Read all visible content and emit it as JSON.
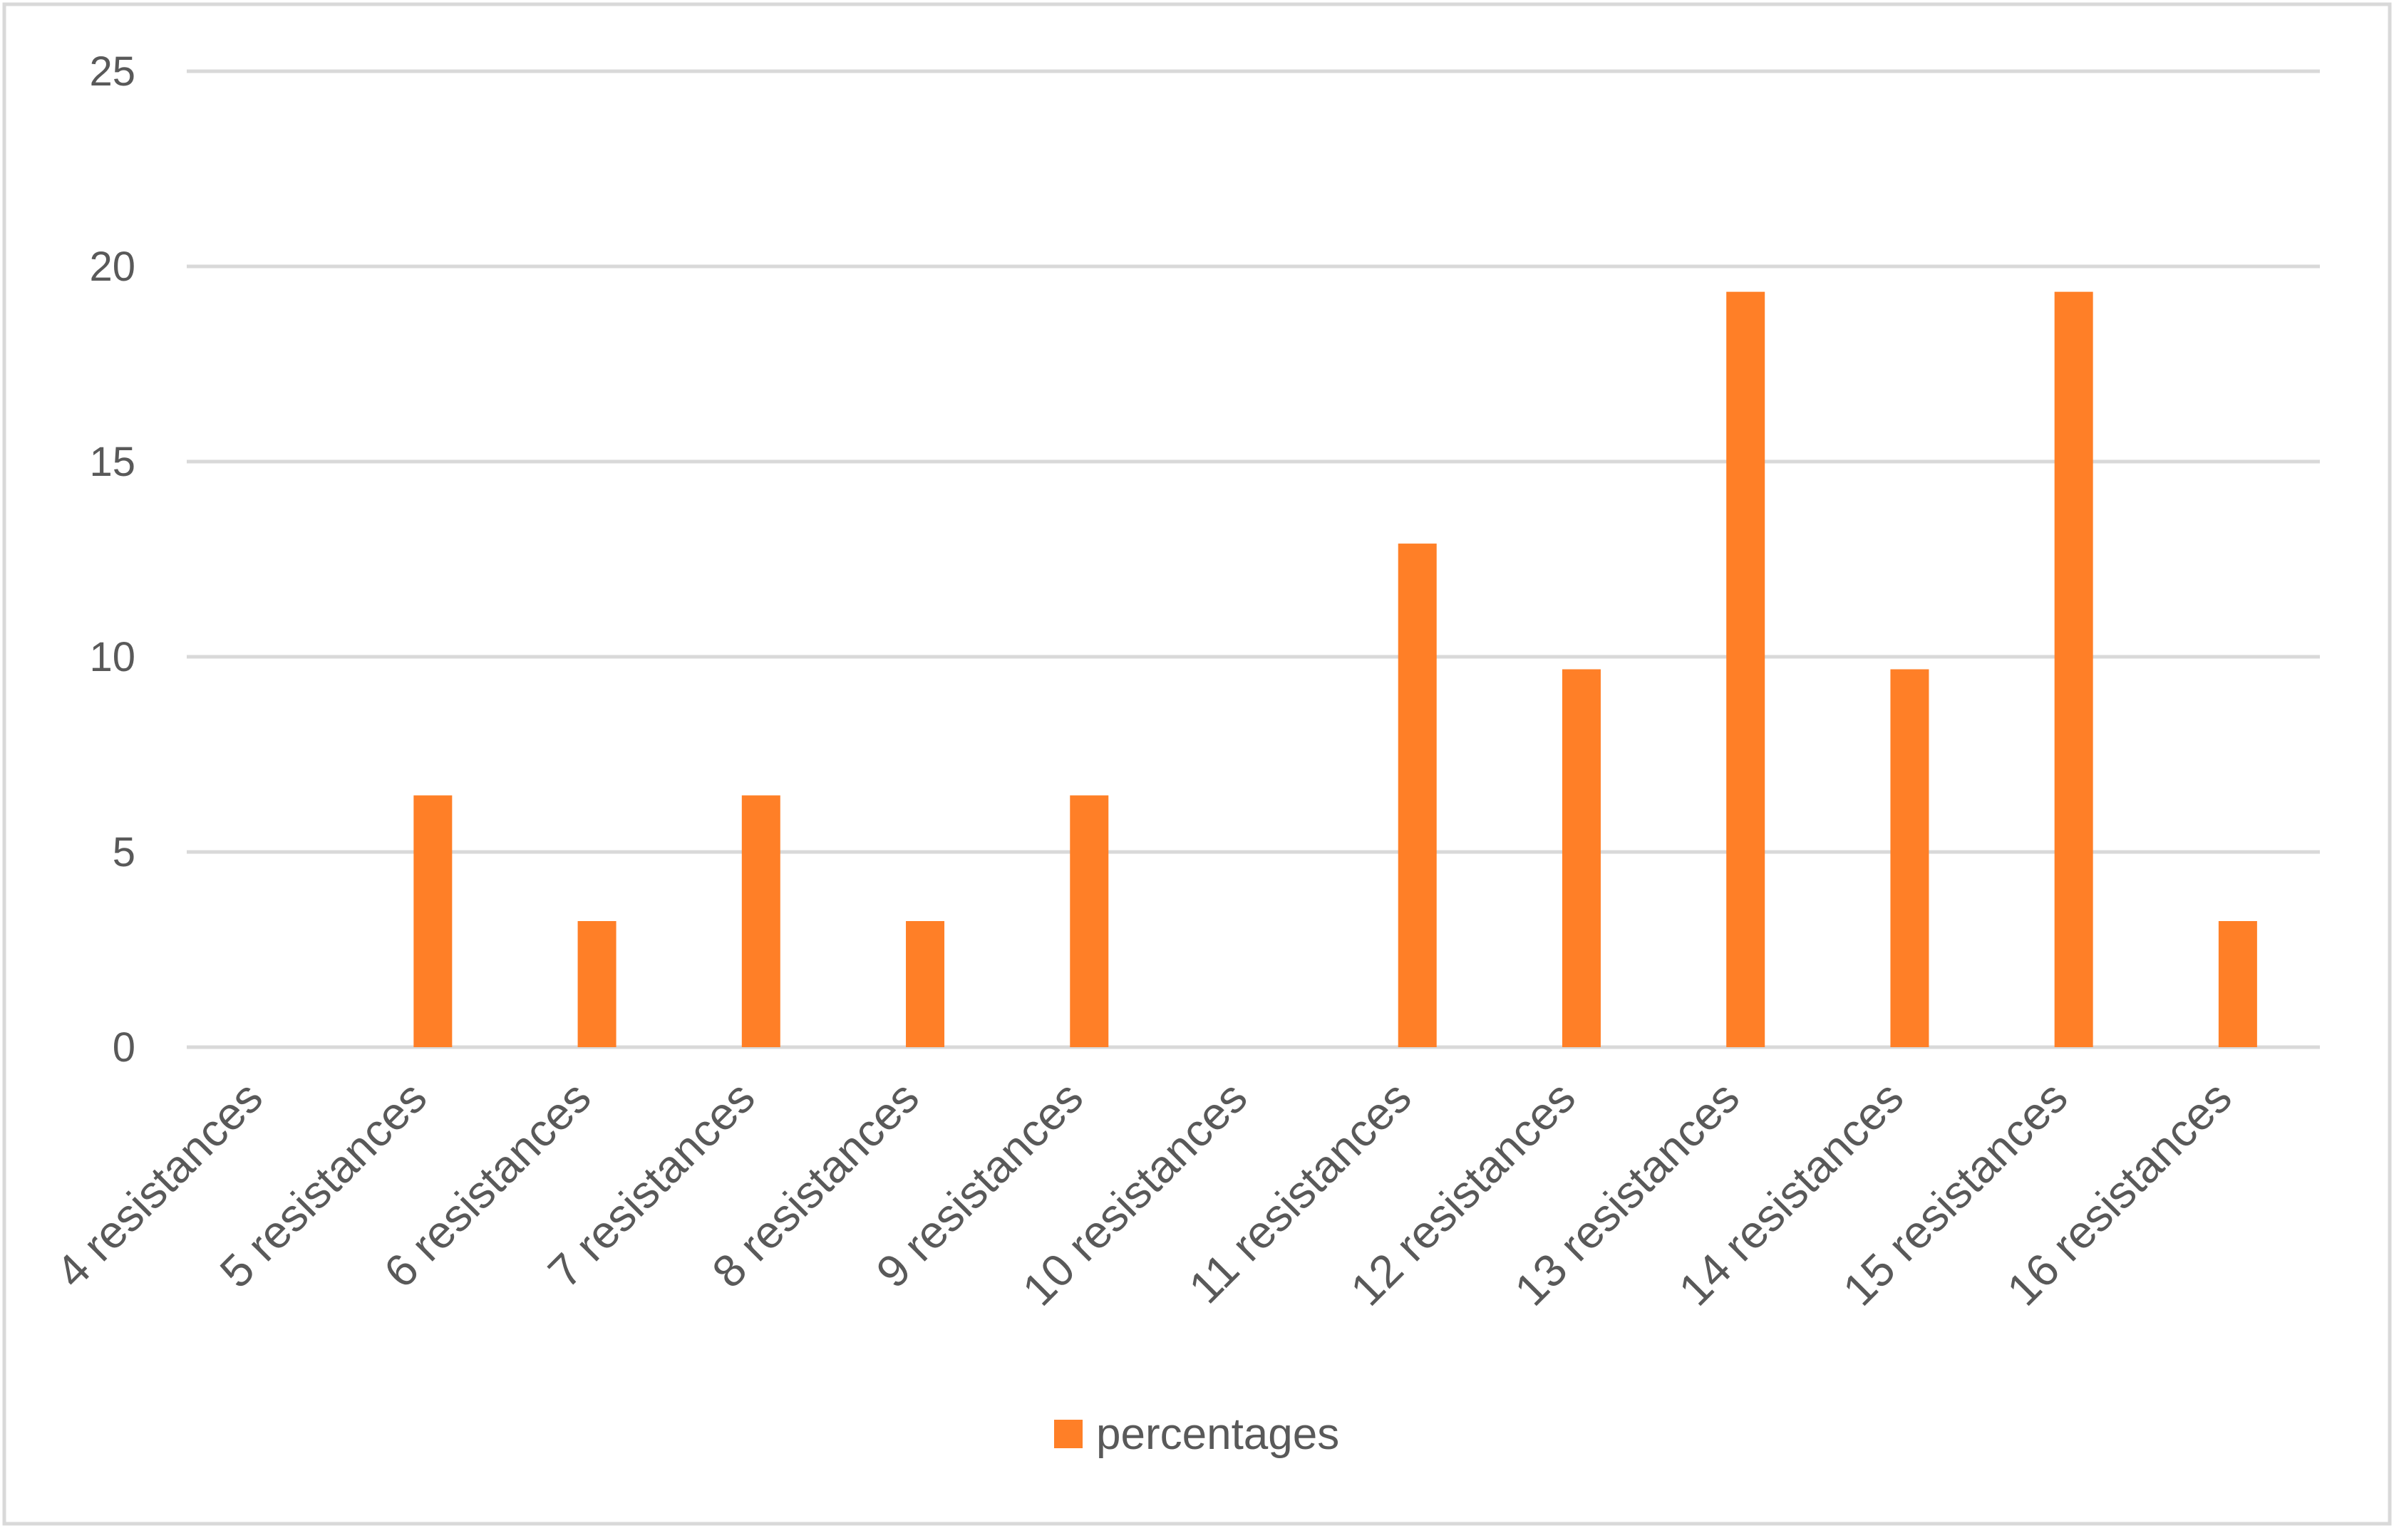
{
  "chart_data": {
    "type": "bar",
    "categories": [
      "4 resistances",
      "5 resistances",
      "6 resistances",
      "7 resistances",
      "8 resistances",
      "9 resistances",
      "10 resistances",
      "11 resistances",
      "12 resistances",
      "13 resistances",
      "14 resistances",
      "15 resistances",
      "16 resistances"
    ],
    "series": [
      {
        "name": "percentages",
        "values": [
          0,
          6.45,
          3.23,
          6.45,
          3.23,
          6.45,
          0,
          12.9,
          9.68,
          19.35,
          9.68,
          19.35,
          3.23
        ],
        "color": "#FF7F27"
      }
    ],
    "yticks": [
      "0",
      "5",
      "10",
      "15",
      "20",
      "25"
    ],
    "ylim": [
      0,
      25
    ],
    "grid": true,
    "legend_position": "bottom",
    "title": "",
    "xlabel": "",
    "ylabel": ""
  }
}
